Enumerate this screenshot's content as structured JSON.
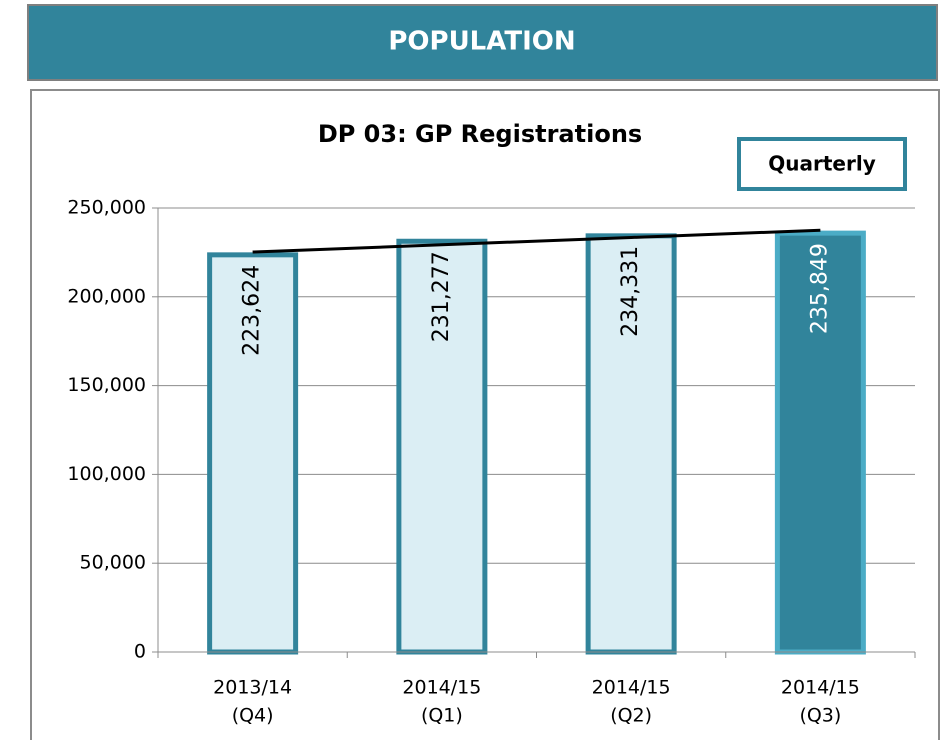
{
  "header": {
    "title": "POPULATION"
  },
  "chart_data": {
    "type": "bar",
    "title": "DP 03: GP Registrations",
    "badge": "Quarterly",
    "categories": [
      [
        "2013/14",
        "(Q4)"
      ],
      [
        "2014/15",
        "(Q1)"
      ],
      [
        "2014/15",
        "(Q2)"
      ],
      [
        "2014/15",
        "(Q3)"
      ]
    ],
    "values": [
      223624,
      231277,
      234331,
      235849
    ],
    "value_labels": [
      "223,624",
      "231,277",
      "234,331",
      "235,849"
    ],
    "colors": [
      "#dbeef4",
      "#dbeef4",
      "#dbeef4",
      "#31849b"
    ],
    "edge_colors": [
      "#31849b",
      "#31849b",
      "#31849b",
      "#4bacc6"
    ],
    "label_colors": [
      "#000000",
      "#000000",
      "#000000",
      "#ffffff"
    ],
    "trendline": {
      "color": "#000000",
      "values": [
        225200,
        229300,
        233400,
        237500
      ]
    },
    "ylim": [
      0,
      250000
    ],
    "yticks": [
      0,
      {
        "value": 50000,
        "label": "50,000"
      },
      {
        "value": 100000,
        "label": "100,000"
      },
      {
        "value": 150000,
        "label": "150,000"
      },
      {
        "value": 200000,
        "label": "200,000"
      },
      {
        "value": 250000,
        "label": "250,000"
      }
    ],
    "grid": true
  }
}
